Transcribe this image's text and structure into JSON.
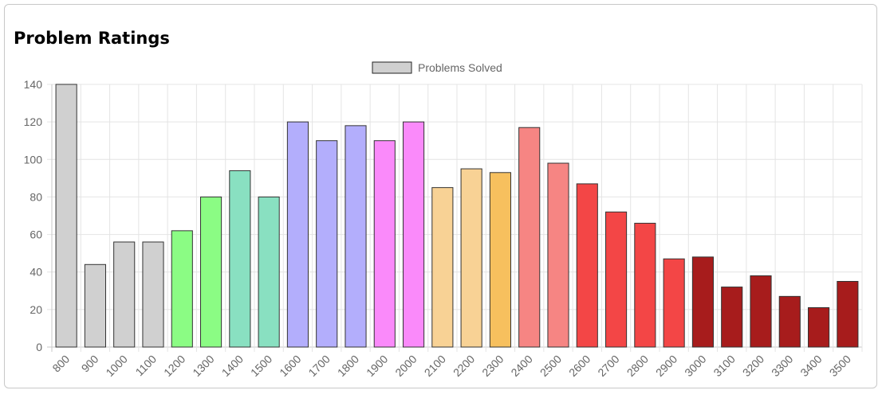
{
  "page": {
    "title": "Problem Ratings"
  },
  "chart_data": {
    "type": "bar",
    "title": "",
    "xlabel": "",
    "ylabel": "",
    "categories": [
      "800",
      "900",
      "1000",
      "1100",
      "1200",
      "1300",
      "1400",
      "1500",
      "1600",
      "1700",
      "1800",
      "1900",
      "2000",
      "2100",
      "2200",
      "2300",
      "2400",
      "2500",
      "2600",
      "2700",
      "2800",
      "2900",
      "3000",
      "3100",
      "3200",
      "3300",
      "3400",
      "3500"
    ],
    "series": [
      {
        "name": "Problems Solved",
        "values": [
          140,
          44,
          56,
          56,
          62,
          80,
          94,
          80,
          120,
          110,
          118,
          110,
          120,
          85,
          95,
          93,
          117,
          98,
          87,
          72,
          66,
          47,
          48,
          32,
          38,
          27,
          21,
          35
        ],
        "colors": [
          "#d0d0d0",
          "#d0d0d0",
          "#d0d0d0",
          "#d0d0d0",
          "#8bfc84",
          "#8bfc84",
          "#89e0c1",
          "#89e0c1",
          "#b3aefc",
          "#b3aefc",
          "#b3aefc",
          "#fa8afa",
          "#fa8afa",
          "#f8d295",
          "#f8d295",
          "#f7c05e",
          "#f68583",
          "#f68583",
          "#f34646",
          "#f34646",
          "#f34646",
          "#f34646",
          "#a71c1c",
          "#a71c1c",
          "#a71c1c",
          "#a71c1c",
          "#a71c1c",
          "#a71c1c"
        ]
      }
    ],
    "legend": {
      "position": "top",
      "swatch_color": "#d0d0d0"
    },
    "ylim": [
      0,
      140
    ],
    "yticks": [
      0,
      20,
      40,
      60,
      80,
      100,
      120,
      140
    ],
    "grid": true
  }
}
